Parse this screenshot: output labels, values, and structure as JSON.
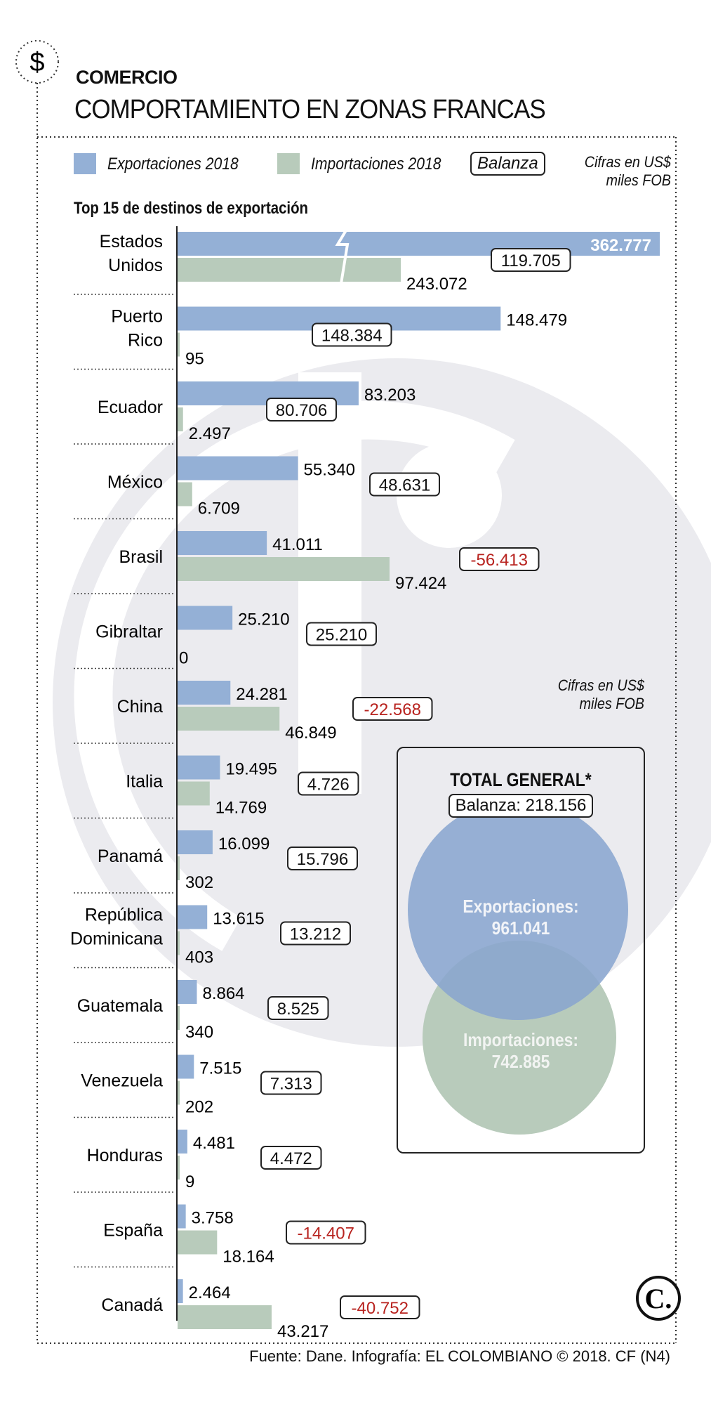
{
  "header": {
    "section_icon": "dollar-icon",
    "kicker": "COMERCIO",
    "title": "COMPORTAMIENTO EN ZONAS FRANCAS"
  },
  "legend": {
    "exports": "Exportaciones 2018",
    "imports": "Importaciones 2018",
    "balance": "Balanza",
    "units_line1": "Cifras en US$",
    "units_line2": "miles FOB"
  },
  "colors": {
    "exports": "#94b0d6",
    "imports": "#b8cbbb",
    "negative": "#b8231f",
    "watermark": "#ebebef"
  },
  "chart_data": {
    "type": "bar",
    "orientation": "horizontal",
    "title": "Top 15 de destinos de exportación",
    "units": "Cifras en US$ miles FOB",
    "axis_break": "Estados Unidos",
    "categories": [
      "Estados Unidos",
      "Puerto Rico",
      "Ecuador",
      "México",
      "Brasil",
      "Gibraltar",
      "China",
      "Italia",
      "Panamá",
      "República Dominicana",
      "Guatemala",
      "Venezuela",
      "Honduras",
      "España",
      "Canadá"
    ],
    "category_lines": [
      [
        "Estados",
        "Unidos"
      ],
      [
        "Puerto",
        "Rico"
      ],
      [
        "Ecuador"
      ],
      [
        "México"
      ],
      [
        "Brasil"
      ],
      [
        "Gibraltar"
      ],
      [
        "China"
      ],
      [
        "Italia"
      ],
      [
        "Panamá"
      ],
      [
        "República",
        "Dominicana"
      ],
      [
        "Guatemala"
      ],
      [
        "Venezuela"
      ],
      [
        "Honduras"
      ],
      [
        "España"
      ],
      [
        "Canadá"
      ]
    ],
    "series": [
      {
        "name": "Exportaciones 2018",
        "values": [
          362777,
          148479,
          83203,
          55340,
          41011,
          25210,
          24281,
          19495,
          16099,
          13615,
          8864,
          7515,
          4481,
          3758,
          2464
        ],
        "labels": [
          "362.777",
          "148.479",
          "83.203",
          "55.340",
          "41.011",
          "25.210",
          "24.281",
          "19.495",
          "16.099",
          "13.615",
          "8.864",
          "7.515",
          "4.481",
          "3.758",
          "2.464"
        ]
      },
      {
        "name": "Importaciones 2018",
        "values": [
          243072,
          95,
          2497,
          6709,
          97424,
          0,
          46849,
          14769,
          302,
          403,
          340,
          202,
          9,
          18164,
          43217
        ],
        "labels": [
          "243.072",
          "95",
          "2.497",
          "6.709",
          "97.424",
          "0",
          "46.849",
          "14.769",
          "302",
          "403",
          "340",
          "202",
          "9",
          "18.164",
          "43.217"
        ]
      },
      {
        "name": "Balanza",
        "values": [
          119705,
          148384,
          80706,
          48631,
          -56413,
          25210,
          -22568,
          4726,
          15796,
          13212,
          8525,
          7313,
          4472,
          -14407,
          -40752
        ],
        "labels": [
          "119.705",
          "148.384",
          "80.706",
          "48.631",
          "-56.413",
          "25.210",
          "-22.568",
          "4.726",
          "15.796",
          "13.212",
          "8.525",
          "7.313",
          "4.472",
          "-14.407",
          "-40.752"
        ]
      }
    ]
  },
  "total": {
    "units_line1": "Cifras en US$",
    "units_line2": "miles FOB",
    "title": "TOTAL GENERAL*",
    "balance": "Balanza: 218.156",
    "exports_label": "Exportaciones:",
    "exports_value": "961.041",
    "imports_label": "Importaciones:",
    "imports_value": "742.885"
  },
  "footer": {
    "source": "Fuente: Dane. Infografía: EL COLOMBIANO © 2018. CF (N4)",
    "logo": "C."
  }
}
